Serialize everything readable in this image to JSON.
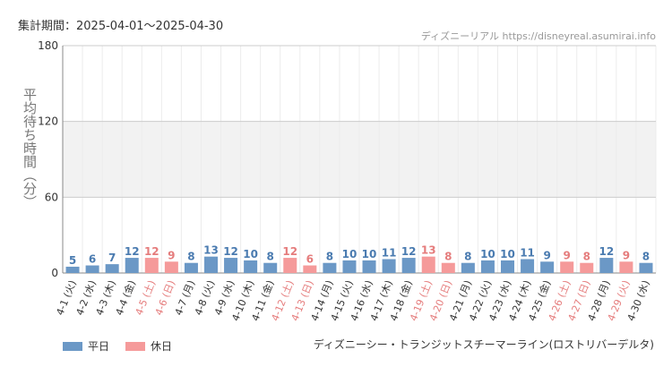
{
  "header": {
    "period_label": "集計期間：2025-04-01～2025-04-30",
    "site_label": "ディズニーリアル https://disneyreal.asumirai.info"
  },
  "footer": {
    "attraction_name": "ディズニーシー・トランジットスチーマーライン(ロストリバーデルタ)"
  },
  "legend": [
    {
      "label": "平日",
      "color": "#6b98c6"
    },
    {
      "label": "休日",
      "color": "#f59a9a"
    }
  ],
  "chart_data": {
    "type": "bar",
    "ylabel": "平均待ち時間（分）",
    "ylim": [
      0,
      180
    ],
    "yticks": [
      0,
      60,
      120,
      180
    ],
    "grid": true,
    "legend_position": "bottom-left",
    "colors": {
      "weekday": "#6b98c6",
      "holiday": "#f59a9a",
      "weekday_text": "#4a7bb0",
      "holiday_text": "#e57c7c"
    },
    "categories": [
      "4-1 (火)",
      "4-2 (水)",
      "4-3 (木)",
      "4-4 (金)",
      "4-5 (土)",
      "4-6 (日)",
      "4-7 (月)",
      "4-8 (火)",
      "4-9 (水)",
      "4-10 (木)",
      "4-11 (金)",
      "4-12 (土)",
      "4-13 (日)",
      "4-14 (月)",
      "4-15 (火)",
      "4-16 (水)",
      "4-17 (木)",
      "4-18 (金)",
      "4-19 (土)",
      "4-20 (日)",
      "4-21 (月)",
      "4-22 (火)",
      "4-23 (水)",
      "4-24 (木)",
      "4-25 (金)",
      "4-26 (土)",
      "4-27 (日)",
      "4-28 (月)",
      "4-29 (火)",
      "4-30 (水)"
    ],
    "values": [
      5,
      6,
      7,
      12,
      12,
      9,
      8,
      13,
      12,
      10,
      8,
      12,
      6,
      8,
      10,
      10,
      11,
      12,
      13,
      8,
      8,
      10,
      10,
      11,
      9,
      9,
      8,
      12,
      9,
      8
    ],
    "day_type": [
      "平日",
      "平日",
      "平日",
      "平日",
      "休日",
      "休日",
      "平日",
      "平日",
      "平日",
      "平日",
      "平日",
      "休日",
      "休日",
      "平日",
      "平日",
      "平日",
      "平日",
      "平日",
      "休日",
      "休日",
      "平日",
      "平日",
      "平日",
      "平日",
      "平日",
      "休日",
      "休日",
      "平日",
      "休日",
      "平日"
    ]
  }
}
